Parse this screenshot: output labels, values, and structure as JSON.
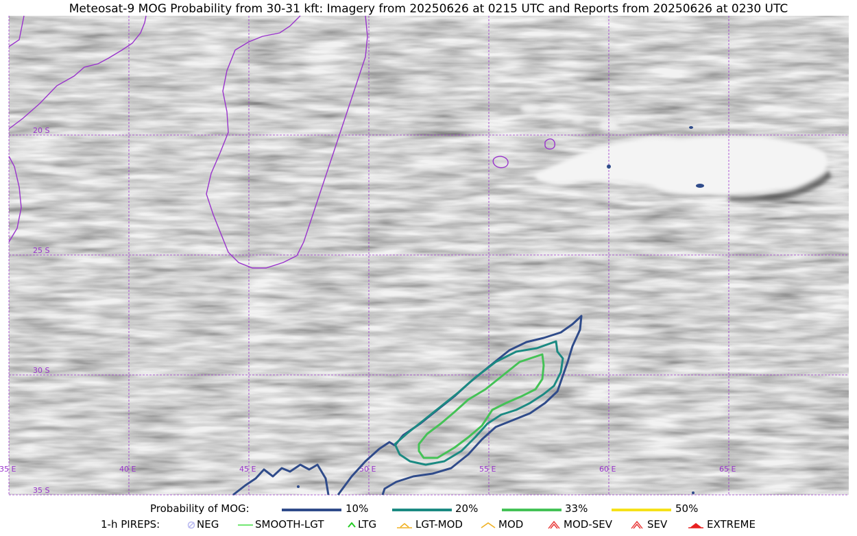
{
  "title": "Meteosat-9 MOG Probability from 30-31 kft: Imagery from 20250626 at 0215 UTC and Reports from 20250626 at 0230 UTC",
  "map": {
    "lon_range": [
      35,
      70
    ],
    "lat_range": [
      -35,
      -15
    ],
    "lon_labels": [
      "35 E",
      "40 E",
      "45 E",
      "50 E",
      "55 E",
      "60 E",
      "65 E"
    ],
    "lat_labels": [
      "20 S",
      "25 S",
      "30 S",
      "35 S"
    ],
    "grid_color": "#9933cc",
    "coast_color": "#9933cc"
  },
  "legend": {
    "probability": {
      "label": "Probability of MOG:",
      "items": [
        {
          "label": "10%",
          "color": "#2f4b8a"
        },
        {
          "label": "20%",
          "color": "#1b8a82"
        },
        {
          "label": "33%",
          "color": "#44c256"
        },
        {
          "label": "50%",
          "color": "#f5e118"
        }
      ]
    },
    "pireps": {
      "label": "1-h PIREPS:",
      "items": [
        {
          "label": "NEG",
          "icon": "neg-circle-icon",
          "color": "#b8b8f0"
        },
        {
          "label": "SMOOTH-LGT",
          "icon": "line-icon",
          "color": "#44dd44"
        },
        {
          "label": "LTG",
          "icon": "caret-icon",
          "color": "#22cc22"
        },
        {
          "label": "LGT-MOD",
          "icon": "caret-bar-icon",
          "color": "#f0b020"
        },
        {
          "label": "MOD",
          "icon": "caret-icon",
          "color": "#f0b020"
        },
        {
          "label": "MOD-SEV",
          "icon": "double-caret-icon",
          "color": "#e83030"
        },
        {
          "label": "SEV",
          "icon": "double-caret-icon",
          "color": "#e83030"
        },
        {
          "label": "EXTREME",
          "icon": "filled-caret-icon",
          "color": "#e82020"
        }
      ]
    }
  }
}
